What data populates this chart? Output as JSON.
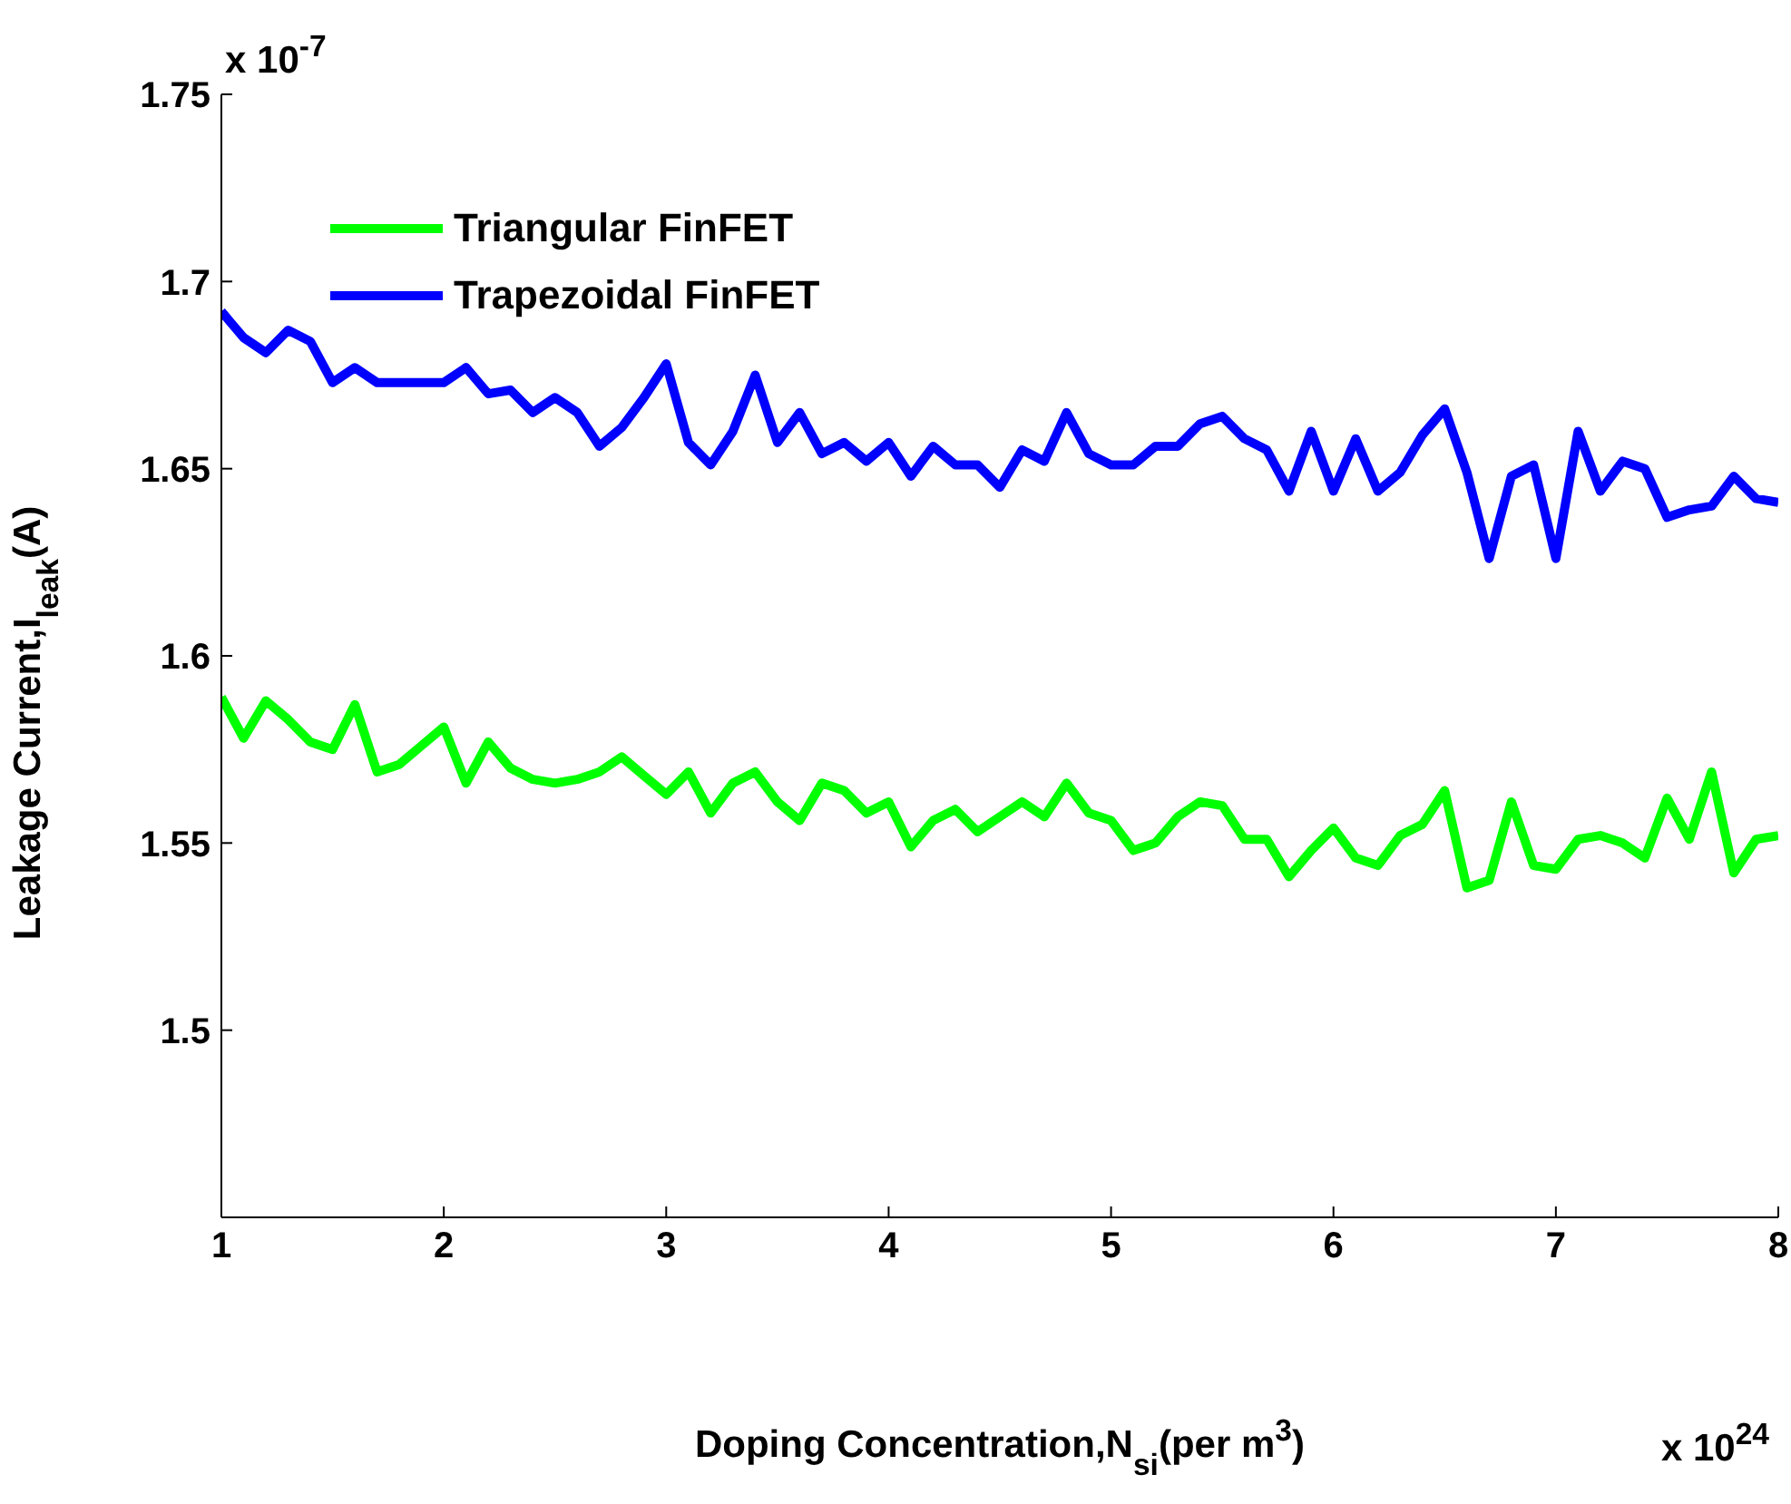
{
  "chart_data": {
    "type": "line",
    "xlabel": "Doping Concentration,N$_{si}$(per m$^{3}$)",
    "ylabel": "Leakage Current,I$_{leak}$(A)",
    "annotations": [
      "x 10$^{-7}$",
      "x 10$^{24}$"
    ],
    "x": [
      1.0,
      1.1,
      1.2,
      1.3,
      1.4,
      1.5,
      1.6,
      1.7,
      1.8,
      1.9,
      2.0,
      2.1,
      2.2,
      2.3,
      2.4,
      2.5,
      2.6,
      2.7,
      2.8,
      2.9,
      3.0,
      3.1,
      3.2,
      3.3,
      3.4,
      3.5,
      3.6,
      3.7,
      3.8,
      3.9,
      4.0,
      4.1,
      4.2,
      4.3,
      4.4,
      4.5,
      4.6,
      4.7,
      4.8,
      4.9,
      5.0,
      5.1,
      5.2,
      5.3,
      5.4,
      5.5,
      5.6,
      5.7,
      5.8,
      5.9,
      6.0,
      6.1,
      6.2,
      6.3,
      6.4,
      6.5,
      6.6,
      6.7,
      6.8,
      6.9,
      7.0,
      7.1,
      7.2,
      7.3,
      7.4,
      7.5,
      7.6,
      7.7,
      7.8,
      7.9,
      8.0
    ],
    "series": [
      {
        "name": "Triangular FinFET",
        "color": "#00ff00",
        "values": [
          1.589,
          1.578,
          1.588,
          1.583,
          1.577,
          1.575,
          1.587,
          1.569,
          1.571,
          1.576,
          1.581,
          1.566,
          1.577,
          1.57,
          1.567,
          1.566,
          1.567,
          1.569,
          1.573,
          1.568,
          1.563,
          1.569,
          1.558,
          1.566,
          1.569,
          1.561,
          1.556,
          1.566,
          1.564,
          1.558,
          1.561,
          1.549,
          1.556,
          1.559,
          1.553,
          1.557,
          1.561,
          1.557,
          1.566,
          1.558,
          1.556,
          1.548,
          1.55,
          1.557,
          1.561,
          1.56,
          1.551,
          1.551,
          1.541,
          1.548,
          1.554,
          1.546,
          1.544,
          1.552,
          1.555,
          1.564,
          1.538,
          1.54,
          1.561,
          1.544,
          1.543,
          1.551,
          1.552,
          1.55,
          1.546,
          1.562,
          1.551,
          1.569,
          1.542,
          1.551,
          1.552
        ]
      },
      {
        "name": "Trapezoidal FinFET",
        "color": "#0000ff",
        "values": [
          1.692,
          1.685,
          1.681,
          1.687,
          1.684,
          1.673,
          1.677,
          1.673,
          1.673,
          1.673,
          1.673,
          1.677,
          1.67,
          1.671,
          1.665,
          1.669,
          1.665,
          1.656,
          1.661,
          1.669,
          1.678,
          1.657,
          1.651,
          1.66,
          1.675,
          1.657,
          1.665,
          1.654,
          1.657,
          1.652,
          1.657,
          1.648,
          1.656,
          1.651,
          1.651,
          1.645,
          1.655,
          1.652,
          1.665,
          1.654,
          1.651,
          1.651,
          1.656,
          1.656,
          1.662,
          1.664,
          1.658,
          1.655,
          1.644,
          1.66,
          1.644,
          1.658,
          1.644,
          1.649,
          1.659,
          1.666,
          1.649,
          1.626,
          1.648,
          1.651,
          1.626,
          1.66,
          1.644,
          1.652,
          1.65,
          1.637,
          1.639,
          1.64,
          1.648,
          1.642,
          1.641
        ]
      }
    ],
    "xlim": [
      1,
      8
    ],
    "xticks": [
      1,
      2,
      3,
      4,
      5,
      6,
      7,
      8
    ],
    "ylim": [
      1.45,
      1.75
    ],
    "yticks": [
      1.5,
      1.55,
      1.6,
      1.65,
      1.7,
      1.75
    ],
    "legend": "top left",
    "marker": "none",
    "line_style": "solid"
  }
}
